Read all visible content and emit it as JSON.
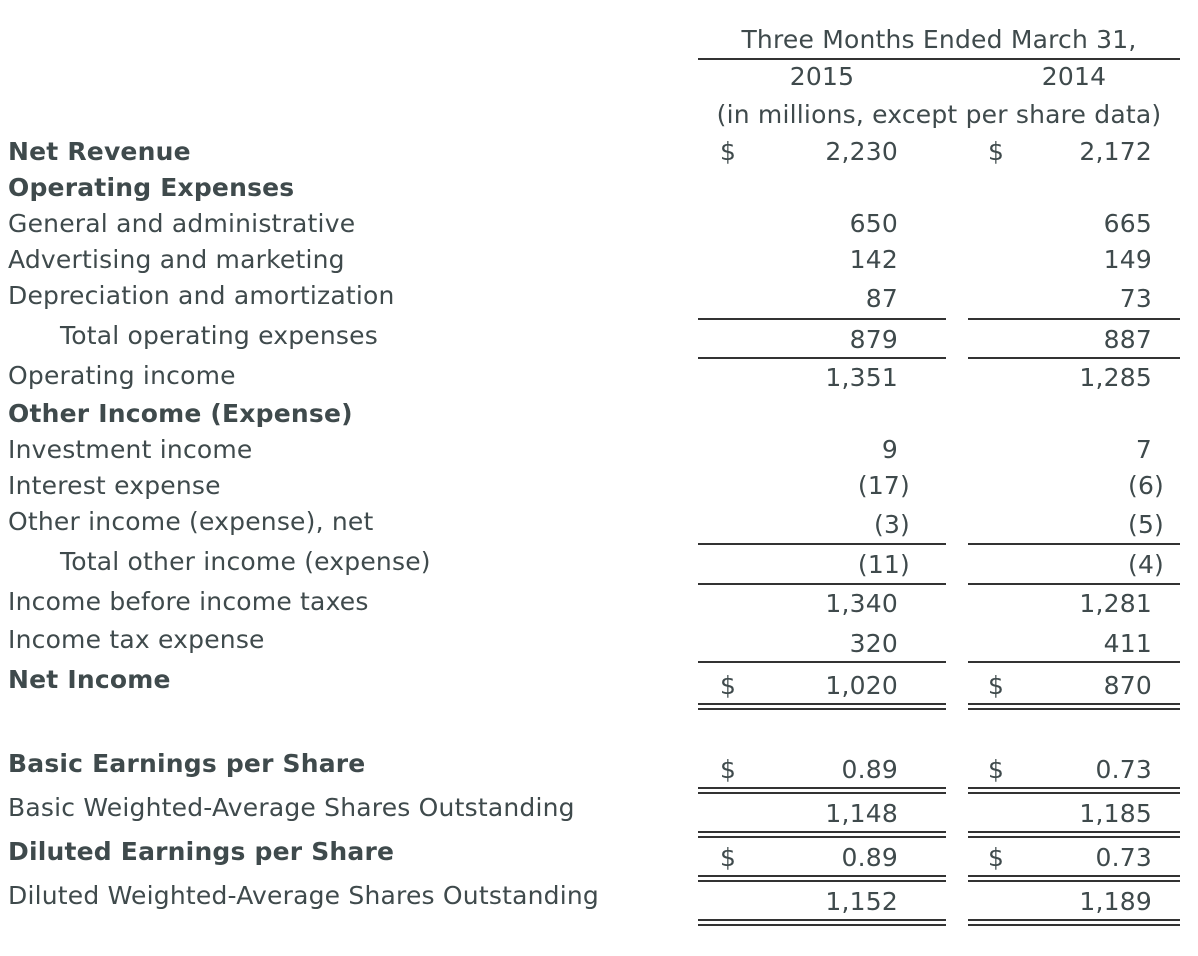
{
  "header": {
    "period": "Three Months Ended March 31,",
    "year_1": "2015",
    "year_2": "2014",
    "units": "(in millions, except per share data)"
  },
  "currency_symbol": "$",
  "rows": {
    "net_revenue": {
      "label": "Net Revenue",
      "v2015": "2,230",
      "v2014": "2,172"
    },
    "operating_expenses": {
      "label": "Operating Expenses"
    },
    "general_admin": {
      "label": "General and administrative",
      "v2015": "650",
      "v2014": "665"
    },
    "advertising": {
      "label": "Advertising and marketing",
      "v2015": "142",
      "v2014": "149"
    },
    "depreciation": {
      "label": "Depreciation and amortization",
      "v2015": "87",
      "v2014": "73"
    },
    "total_operating": {
      "label": "Total operating expenses",
      "v2015": "879",
      "v2014": "887"
    },
    "operating_income": {
      "label": "Operating income",
      "v2015": "1,351",
      "v2014": "1,285"
    },
    "other_income_header": {
      "label": "Other Income (Expense)"
    },
    "investment_income": {
      "label": "Investment income",
      "v2015": "9",
      "v2014": "7"
    },
    "interest_expense": {
      "label": "Interest expense",
      "v2015": "(17)",
      "v2014": "(6)"
    },
    "other_net": {
      "label": "Other income (expense), net",
      "v2015": "(3)",
      "v2014": "(5)"
    },
    "total_other": {
      "label": "Total other income (expense)",
      "v2015": "(11)",
      "v2014": "(4)"
    },
    "income_before_taxes": {
      "label": "Income before income taxes",
      "v2015": "1,340",
      "v2014": "1,281"
    },
    "income_tax": {
      "label": "Income tax expense",
      "v2015": "320",
      "v2014": "411"
    },
    "net_income": {
      "label": "Net Income",
      "v2015": "1,020",
      "v2014": "870"
    },
    "basic_eps": {
      "label": "Basic Earnings per Share",
      "v2015": "0.89",
      "v2014": "0.73"
    },
    "basic_shares": {
      "label": "Basic Weighted-Average Shares Outstanding",
      "v2015": "1,148",
      "v2014": "1,185"
    },
    "diluted_eps": {
      "label": "Diluted Earnings per Share",
      "v2015": "0.89",
      "v2014": "0.73"
    },
    "diluted_shares": {
      "label": "Diluted Weighted-Average Shares Outstanding",
      "v2015": "1,152",
      "v2014": "1,189"
    }
  }
}
